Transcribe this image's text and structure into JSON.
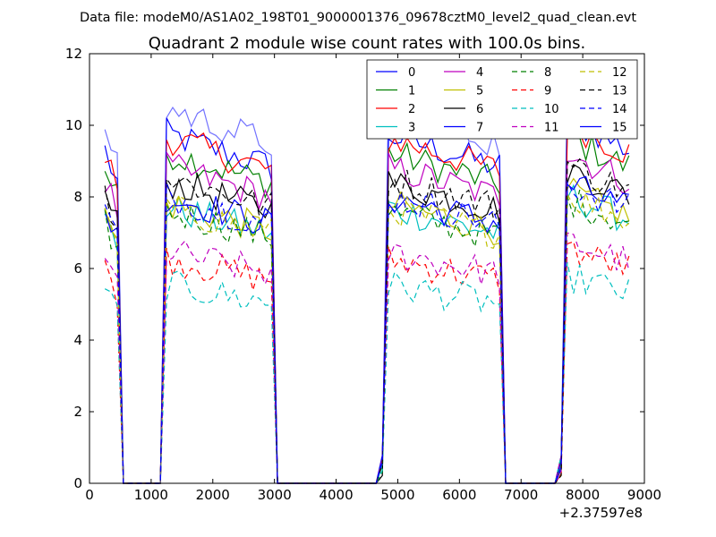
{
  "suptitle": "Data file: modeM0/AS1A02_198T01_9000001376_09678cztM0_level2_quad_clean.evt",
  "chart_data": {
    "type": "line",
    "title": "Quadrant 2 module wise count rates with 100.0s bins.",
    "xlabel": "",
    "ylabel": "",
    "x_offset_label": "+2.37597e8",
    "xlim": [
      0,
      9000
    ],
    "ylim": [
      0,
      12
    ],
    "xticks": [
      "0",
      "1000",
      "2000",
      "3000",
      "4000",
      "5000",
      "6000",
      "7000",
      "8000",
      "9000"
    ],
    "yticks": [
      "0",
      "2",
      "4",
      "6",
      "8",
      "10",
      "12"
    ],
    "legend_position": "top-right",
    "series": [
      {
        "name": "0",
        "color": "#0000ff",
        "dash": "solid",
        "base": 9.5
      },
      {
        "name": "1",
        "color": "#008000",
        "dash": "solid",
        "base": 9.0
      },
      {
        "name": "2",
        "color": "#ff0000",
        "dash": "solid",
        "base": 9.4
      },
      {
        "name": "3",
        "color": "#00bfbf",
        "dash": "solid",
        "base": 7.5
      },
      {
        "name": "4",
        "color": "#bf00bf",
        "dash": "solid",
        "base": 8.6
      },
      {
        "name": "5",
        "color": "#bfbf00",
        "dash": "solid",
        "base": 7.6
      },
      {
        "name": "6",
        "color": "#000000",
        "dash": "solid",
        "base": 8.2
      },
      {
        "name": "7",
        "color": "#0000ff",
        "dash": "solid",
        "base": 7.8
      },
      {
        "name": "8",
        "color": "#008000",
        "dash": "dashed",
        "base": 7.4
      },
      {
        "name": "9",
        "color": "#ff0000",
        "dash": "dashed",
        "base": 6.1
      },
      {
        "name": "10",
        "color": "#00bfbf",
        "dash": "dashed",
        "base": 5.4
      },
      {
        "name": "11",
        "color": "#bf00bf",
        "dash": "dashed",
        "base": 6.3
      },
      {
        "name": "12",
        "color": "#bfbf00",
        "dash": "dashed",
        "base": 7.5
      },
      {
        "name": "13",
        "color": "#000000",
        "dash": "dashed",
        "base": 8.3
      },
      {
        "name": "14",
        "color": "#0000ff",
        "dash": "dashed",
        "base": 7.8
      },
      {
        "name": "15",
        "color": "#0000ff",
        "dash": "solid",
        "base": 10.2
      }
    ],
    "active_intervals": [
      [
        250,
        450
      ],
      [
        1200,
        2950
      ],
      [
        4750,
        6650
      ],
      [
        7650,
        8800
      ]
    ]
  }
}
